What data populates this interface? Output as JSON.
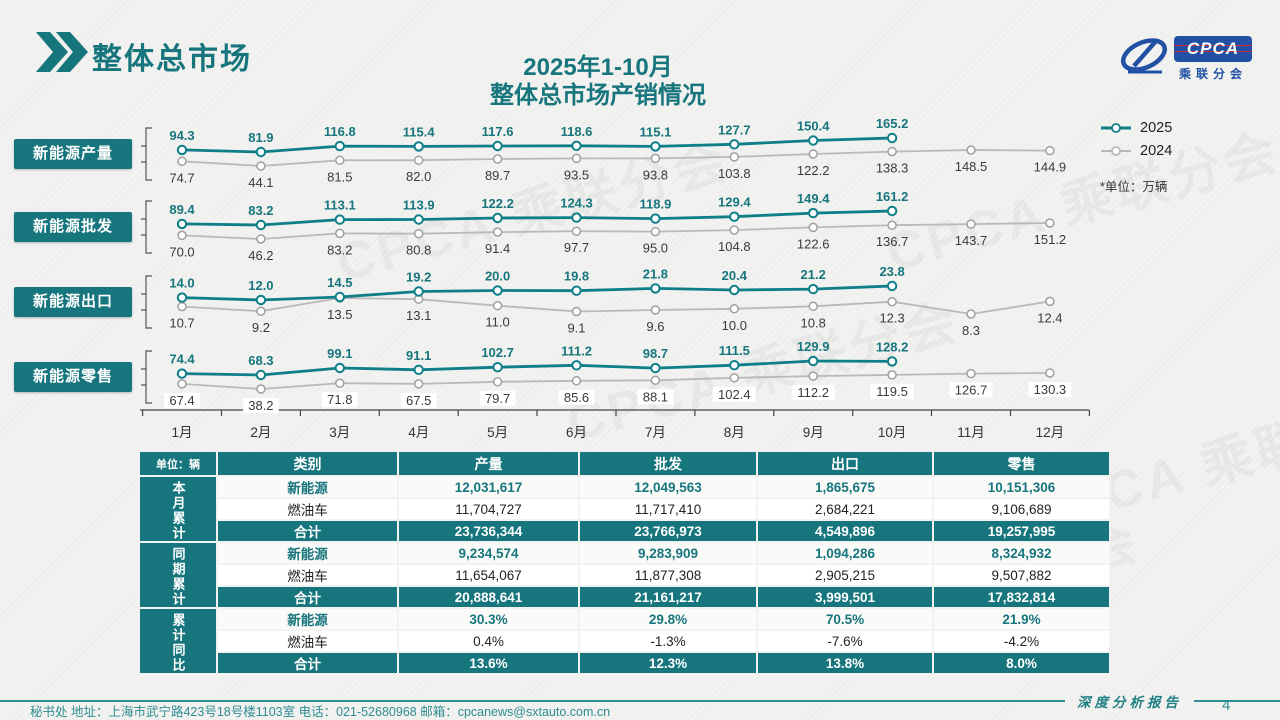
{
  "page": {
    "title": "整体总市场",
    "subtitle_line1": "2025年1-10月",
    "subtitle_line2": "整体总市场产销情况",
    "unit_note": "*单位：万辆",
    "footer_left": "秘书处   地址：上海市武宁路423号18号楼1103室  电话：021-52680968   邮箱：cpcanews@sxtauto.com.cn",
    "footer_right": "深度分析报告",
    "page_number": "4",
    "watermark": "CPCA 乘联分会"
  },
  "logo": {
    "cpca": "CPCA",
    "name": "乘联分会"
  },
  "legend": [
    {
      "label": "2025",
      "color": "#0E7E88",
      "weight": 3
    },
    {
      "label": "2024",
      "color": "#b9b9b9",
      "weight": 2
    }
  ],
  "chart_data": {
    "type": "line",
    "title": "2025年1-10月整体总市场产销情况",
    "unit": "万辆",
    "x": [
      "1月",
      "2月",
      "3月",
      "4月",
      "5月",
      "6月",
      "7月",
      "8月",
      "9月",
      "10月",
      "11月",
      "12月"
    ],
    "rows": [
      {
        "label": "新能源产量",
        "series": [
          {
            "name": "2025",
            "values": [
              94.3,
              81.9,
              116.8,
              115.4,
              117.6,
              118.6,
              115.1,
              127.7,
              150.4,
              165.2
            ]
          },
          {
            "name": "2024",
            "values": [
              74.7,
              44.1,
              81.5,
              82.0,
              89.7,
              93.5,
              93.8,
              103.8,
              122.2,
              138.3,
              148.5,
              144.9
            ]
          }
        ]
      },
      {
        "label": "新能源批发",
        "series": [
          {
            "name": "2025",
            "values": [
              89.4,
              83.2,
              113.1,
              113.9,
              122.2,
              124.3,
              118.9,
              129.4,
              149.4,
              161.2
            ]
          },
          {
            "name": "2024",
            "values": [
              70.0,
              46.2,
              83.2,
              80.8,
              91.4,
              97.7,
              95.0,
              104.8,
              122.6,
              136.7,
              143.7,
              151.2
            ]
          }
        ]
      },
      {
        "label": "新能源出口",
        "series": [
          {
            "name": "2025",
            "values": [
              14.0,
              12.0,
              14.5,
              19.2,
              20.0,
              19.8,
              21.8,
              20.4,
              21.2,
              23.8
            ]
          },
          {
            "name": "2024",
            "values": [
              10.7,
              9.2,
              13.5,
              13.1,
              11.0,
              9.1,
              9.6,
              10.0,
              10.8,
              12.3,
              8.3,
              12.4
            ]
          }
        ]
      },
      {
        "label": "新能源零售",
        "series": [
          {
            "name": "2025",
            "values": [
              74.4,
              68.3,
              99.1,
              91.1,
              102.7,
              111.2,
              98.7,
              111.5,
              129.9,
              128.2
            ]
          },
          {
            "name": "2024",
            "values": [
              67.4,
              38.2,
              71.8,
              67.5,
              79.7,
              85.6,
              88.1,
              102.4,
              112.2,
              119.5,
              126.7,
              130.3
            ]
          }
        ]
      }
    ]
  },
  "table": {
    "unit_label": "单位：辆",
    "columns": [
      "类别",
      "产量",
      "批发",
      "出口",
      "零售"
    ],
    "groups": [
      {
        "label": "本月累计",
        "rows": [
          {
            "name": "新能源",
            "style": "nev",
            "values": [
              "12,031,617",
              "12,049,563",
              "1,865,675",
              "10,151,306"
            ]
          },
          {
            "name": "燃油车",
            "style": "ice",
            "values": [
              "11,704,727",
              "11,717,410",
              "2,684,221",
              "9,106,689"
            ]
          },
          {
            "name": "合计",
            "style": "total",
            "values": [
              "23,736,344",
              "23,766,973",
              "4,549,896",
              "19,257,995"
            ]
          }
        ]
      },
      {
        "label": "同期累计",
        "rows": [
          {
            "name": "新能源",
            "style": "nev",
            "values": [
              "9,234,574",
              "9,283,909",
              "1,094,286",
              "8,324,932"
            ]
          },
          {
            "name": "燃油车",
            "style": "ice",
            "values": [
              "11,654,067",
              "11,877,308",
              "2,905,215",
              "9,507,882"
            ]
          },
          {
            "name": "合计",
            "style": "total",
            "values": [
              "20,888,641",
              "21,161,217",
              "3,999,501",
              "17,832,814"
            ]
          }
        ]
      },
      {
        "label": "累计同比",
        "rows": [
          {
            "name": "新能源",
            "style": "nev",
            "values": [
              "30.3%",
              "29.8%",
              "70.5%",
              "21.9%"
            ]
          },
          {
            "name": "燃油车",
            "style": "ice",
            "values": [
              "0.4%",
              "-1.3%",
              "-7.6%",
              "-4.2%"
            ]
          },
          {
            "name": "合计",
            "style": "total",
            "values": [
              "13.6%",
              "12.3%",
              "13.8%",
              "8.0%"
            ]
          }
        ]
      }
    ]
  },
  "colors": {
    "teal": "#17767D",
    "line2025": "#0E7E88",
    "line2024": "#b9b9b9",
    "label2024": "#3a3a3a",
    "logo_blue": "#2150a5",
    "footer_teal": "#2e8d91"
  }
}
